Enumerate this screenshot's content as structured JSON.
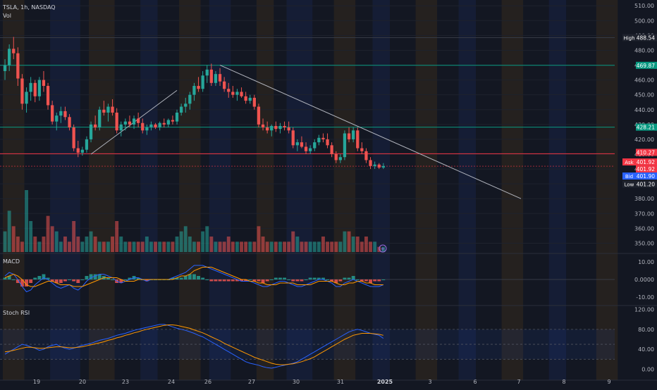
{
  "header": {
    "symbol_line": "TSLA, 1h, NASDAQ",
    "volume_label": "Vol"
  },
  "colors": {
    "background": "#131722",
    "up": "#26a69a",
    "down": "#ef5350",
    "macd_line": "#2962ff",
    "signal_line": "#ff9800",
    "stoch_k": "#2962ff",
    "stoch_d": "#ff9800",
    "grid": "#1e222d",
    "trendline": "#b2b5be",
    "level_green": "#089981",
    "level_red": "#f23645",
    "session_orange": "#ff9800",
    "session_blue": "#2962ff"
  },
  "chart_data": [
    {
      "type": "candlestick",
      "symbol": "TSLA",
      "interval": "1h",
      "exchange": "NASDAQ",
      "x_labels": [
        "19",
        "20",
        "23",
        "24",
        "26",
        "27",
        "30",
        "31",
        "2025",
        "3",
        "6",
        "7",
        "8",
        "9"
      ],
      "y_ticks": [
        350,
        360,
        370,
        380,
        390,
        400,
        410,
        420,
        430,
        440,
        450,
        460,
        470,
        480,
        490,
        500,
        510
      ],
      "y_tick_labels": [
        "350.00",
        "360.00",
        "370.00",
        "380.00",
        "390.00",
        "400.00",
        "410.00",
        "420.00",
        "430.00",
        "440.00",
        "450.00",
        "460.00",
        "470.00",
        "480.00",
        "490.00",
        "500.00",
        "510.00"
      ],
      "ylim": [
        345,
        512
      ],
      "candles": [
        [
          466,
          474,
          460,
          470
        ],
        [
          470,
          484,
          466,
          481
        ],
        [
          481,
          489,
          474,
          478
        ],
        [
          478,
          482,
          456,
          461
        ],
        [
          461,
          464,
          440,
          444
        ],
        [
          444,
          455,
          438,
          452
        ],
        [
          452,
          462,
          446,
          458
        ],
        [
          458,
          460,
          445,
          449
        ],
        [
          449,
          462,
          446,
          460
        ],
        [
          460,
          466,
          452,
          456
        ],
        [
          456,
          458,
          440,
          443
        ],
        [
          443,
          446,
          430,
          432
        ],
        [
          432,
          438,
          426,
          436
        ],
        [
          436,
          442,
          431,
          439
        ],
        [
          439,
          442,
          433,
          435
        ],
        [
          435,
          437,
          426,
          428
        ],
        [
          428,
          430,
          412,
          414
        ],
        [
          414,
          419,
          408,
          411
        ],
        [
          411,
          415,
          409,
          413
        ],
        [
          413,
          422,
          411,
          420
        ],
        [
          420,
          432,
          418,
          430
        ],
        [
          430,
          436,
          426,
          428
        ],
        [
          428,
          442,
          426,
          440
        ],
        [
          440,
          446,
          436,
          438
        ],
        [
          438,
          444,
          432,
          442
        ],
        [
          442,
          447,
          436,
          438
        ],
        [
          438,
          441,
          424,
          426
        ],
        [
          426,
          432,
          422,
          430
        ],
        [
          430,
          434,
          426,
          432
        ],
        [
          432,
          436,
          428,
          430
        ],
        [
          430,
          436,
          427,
          434
        ],
        [
          434,
          438,
          428,
          431
        ],
        [
          431,
          434,
          424,
          426
        ],
        [
          426,
          430,
          423,
          428
        ],
        [
          428,
          432,
          426,
          430
        ],
        [
          430,
          431,
          427,
          428
        ],
        [
          428,
          432,
          426,
          431
        ],
        [
          431,
          434,
          428,
          430
        ],
        [
          430,
          434,
          428,
          433
        ],
        [
          433,
          436,
          430,
          432
        ],
        [
          432,
          440,
          430,
          438
        ],
        [
          438,
          444,
          436,
          442
        ],
        [
          442,
          448,
          438,
          444
        ],
        [
          444,
          452,
          440,
          450
        ],
        [
          450,
          458,
          446,
          456
        ],
        [
          456,
          462,
          452,
          454
        ],
        [
          454,
          466,
          452,
          463
        ],
        [
          463,
          470,
          458,
          467
        ],
        [
          467,
          471,
          456,
          458
        ],
        [
          458,
          466,
          456,
          464
        ],
        [
          464,
          468,
          456,
          459
        ],
        [
          459,
          462,
          452,
          454
        ],
        [
          454,
          458,
          448,
          452
        ],
        [
          452,
          456,
          448,
          450
        ],
        [
          450,
          454,
          446,
          452
        ],
        [
          452,
          455,
          448,
          449
        ],
        [
          449,
          452,
          444,
          446
        ],
        [
          446,
          450,
          444,
          448
        ],
        [
          448,
          450,
          440,
          442
        ],
        [
          442,
          444,
          428,
          430
        ],
        [
          430,
          434,
          426,
          428
        ],
        [
          428,
          432,
          424,
          426
        ],
        [
          426,
          430,
          422,
          429
        ],
        [
          429,
          432,
          425,
          427
        ],
        [
          427,
          431,
          424,
          429
        ],
        [
          429,
          432,
          426,
          428
        ],
        [
          428,
          432,
          424,
          426
        ],
        [
          426,
          428,
          414,
          416
        ],
        [
          416,
          420,
          412,
          418
        ],
        [
          418,
          422,
          414,
          415
        ],
        [
          415,
          418,
          410,
          412
        ],
        [
          412,
          416,
          410,
          414
        ],
        [
          414,
          420,
          412,
          418
        ],
        [
          418,
          423,
          416,
          421
        ],
        [
          421,
          424,
          418,
          420
        ],
        [
          420,
          424,
          414,
          416
        ],
        [
          416,
          418,
          408,
          410
        ],
        [
          410,
          412,
          404,
          406
        ],
        [
          406,
          410,
          404,
          408
        ],
        [
          408,
          426,
          406,
          424
        ],
        [
          424,
          428,
          418,
          420
        ],
        [
          420,
          428,
          418,
          426
        ],
        [
          426,
          428,
          412,
          414
        ],
        [
          414,
          418,
          410,
          412
        ],
        [
          412,
          414,
          404,
          406
        ],
        [
          406,
          408,
          400,
          402
        ],
        [
          402,
          405,
          400,
          403
        ],
        [
          403,
          404,
          400,
          401
        ],
        [
          401,
          404,
          400,
          402
        ]
      ],
      "levels": [
        {
          "label": "High",
          "value": 488.54
        },
        {
          "value": 469.87
        },
        {
          "value": 428.21
        },
        {
          "value": 410.27
        },
        {
          "label": "Ask",
          "value": 401.92
        },
        {
          "value": 401.92
        },
        {
          "label": "Bid",
          "value": 401.9
        },
        {
          "label": "Low",
          "value": 401.2
        }
      ],
      "level_text": {
        "high": "488.54",
        "lvl1": "469.87",
        "lvl2": "428.21",
        "lvl3": "410.27",
        "ask": "401.92",
        "last": "401.92",
        "bid": "401.90",
        "low": "401.20"
      },
      "trendlines": [
        {
          "from": [
            20,
            410
          ],
          "to": [
            40,
            453
          ]
        },
        {
          "from": [
            50,
            470
          ],
          "to": [
            120,
            380
          ]
        }
      ]
    },
    {
      "type": "bar",
      "name": "Vol",
      "values": [
        4,
        8,
        5,
        3,
        2,
        12,
        6,
        3,
        2,
        3,
        7,
        5,
        4,
        2,
        3,
        2,
        6,
        3,
        2,
        3,
        4,
        3,
        2,
        2,
        2,
        3,
        6,
        3,
        2,
        2,
        2,
        2,
        2,
        3,
        2,
        2,
        2,
        2,
        2,
        2,
        3,
        4,
        5,
        3,
        2,
        2,
        4,
        5,
        3,
        2,
        2,
        2,
        3,
        2,
        2,
        2,
        2,
        2,
        2,
        5,
        3,
        2,
        2,
        2,
        2,
        2,
        2,
        4,
        3,
        2,
        2,
        2,
        2,
        2,
        3,
        2,
        2,
        2,
        2,
        4,
        4,
        3,
        3,
        2,
        3,
        2,
        2,
        1,
        1
      ]
    },
    {
      "type": "line",
      "name": "MACD",
      "y_tick_labels": [
        "10.00",
        "0.0000",
        "-10.00"
      ],
      "ylim": [
        -14,
        14
      ],
      "macd": [
        2,
        4,
        3,
        0,
        -4,
        -7,
        -6,
        -3,
        -1,
        1,
        0,
        -2,
        -4,
        -5,
        -4,
        -3,
        -5,
        -6,
        -4,
        -1,
        1,
        2,
        3,
        3,
        2,
        1,
        -1,
        -2,
        -1,
        0,
        1,
        1,
        0,
        -1,
        0,
        0,
        0,
        0,
        0,
        1,
        2,
        3,
        4,
        6,
        8,
        8,
        8,
        7,
        6,
        5,
        4,
        3,
        2,
        1,
        0,
        -1,
        -1,
        -1,
        -2,
        -3,
        -4,
        -4,
        -3,
        -2,
        -1,
        -1,
        -2,
        -3,
        -4,
        -4,
        -3,
        -2,
        -1,
        0,
        0,
        -1,
        -2,
        -4,
        -4,
        -2,
        -1,
        0,
        -1,
        -2,
        -3,
        -4,
        -4,
        -4,
        -3
      ],
      "signal": [
        1,
        2,
        3,
        2,
        0,
        -3,
        -4,
        -4,
        -3,
        -2,
        -1,
        -1,
        -2,
        -3,
        -3,
        -3,
        -4,
        -4,
        -4,
        -3,
        -2,
        -1,
        0,
        1,
        1,
        1,
        1,
        0,
        -1,
        -1,
        -1,
        0,
        0,
        0,
        0,
        0,
        0,
        0,
        0,
        0,
        1,
        2,
        2,
        3,
        5,
        6,
        7,
        7,
        7,
        6,
        5,
        4,
        3,
        2,
        1,
        0,
        0,
        -1,
        -1,
        -2,
        -2,
        -3,
        -3,
        -3,
        -2,
        -2,
        -2,
        -2,
        -3,
        -3,
        -3,
        -3,
        -2,
        -1,
        -1,
        -1,
        -1,
        -2,
        -3,
        -3,
        -2,
        -2,
        -1,
        -1,
        -2,
        -2,
        -3,
        -3,
        -3
      ]
    },
    {
      "type": "line",
      "name": "Stoch RSI",
      "y_tick_labels": [
        "120.00",
        "80.00",
        "40.00",
        "0.00"
      ],
      "ylim": [
        -5,
        125
      ],
      "k": [
        30,
        35,
        40,
        45,
        50,
        48,
        45,
        42,
        38,
        40,
        45,
        48,
        50,
        45,
        42,
        40,
        42,
        45,
        48,
        50,
        52,
        55,
        58,
        60,
        62,
        65,
        68,
        70,
        72,
        75,
        78,
        80,
        82,
        84,
        86,
        88,
        90,
        90,
        88,
        85,
        82,
        80,
        78,
        75,
        72,
        68,
        65,
        60,
        55,
        50,
        45,
        40,
        35,
        30,
        25,
        20,
        15,
        12,
        10,
        8,
        5,
        3,
        2,
        4,
        6,
        8,
        10,
        12,
        15,
        20,
        25,
        30,
        35,
        40,
        45,
        50,
        55,
        60,
        65,
        70,
        75,
        78,
        80,
        78,
        75,
        72,
        70,
        68,
        62
      ],
      "d": [
        35,
        36,
        38,
        40,
        42,
        44,
        44,
        43,
        42,
        42,
        43,
        44,
        45,
        45,
        44,
        43,
        43,
        44,
        45,
        47,
        49,
        51,
        53,
        55,
        58,
        60,
        63,
        65,
        68,
        70,
        73,
        75,
        78,
        80,
        82,
        84,
        86,
        88,
        89,
        89,
        88,
        86,
        84,
        82,
        79,
        76,
        73,
        69,
        65,
        61,
        57,
        52,
        48,
        44,
        40,
        36,
        32,
        28,
        24,
        21,
        18,
        15,
        12,
        10,
        9,
        9,
        10,
        11,
        13,
        15,
        18,
        21,
        25,
        30,
        35,
        40,
        45,
        50,
        55,
        60,
        64,
        68,
        70,
        72,
        72,
        72,
        71,
        70,
        68
      ]
    }
  ],
  "pane_labels": {
    "macd": "MACD",
    "stoch": "Stoch RSI"
  }
}
